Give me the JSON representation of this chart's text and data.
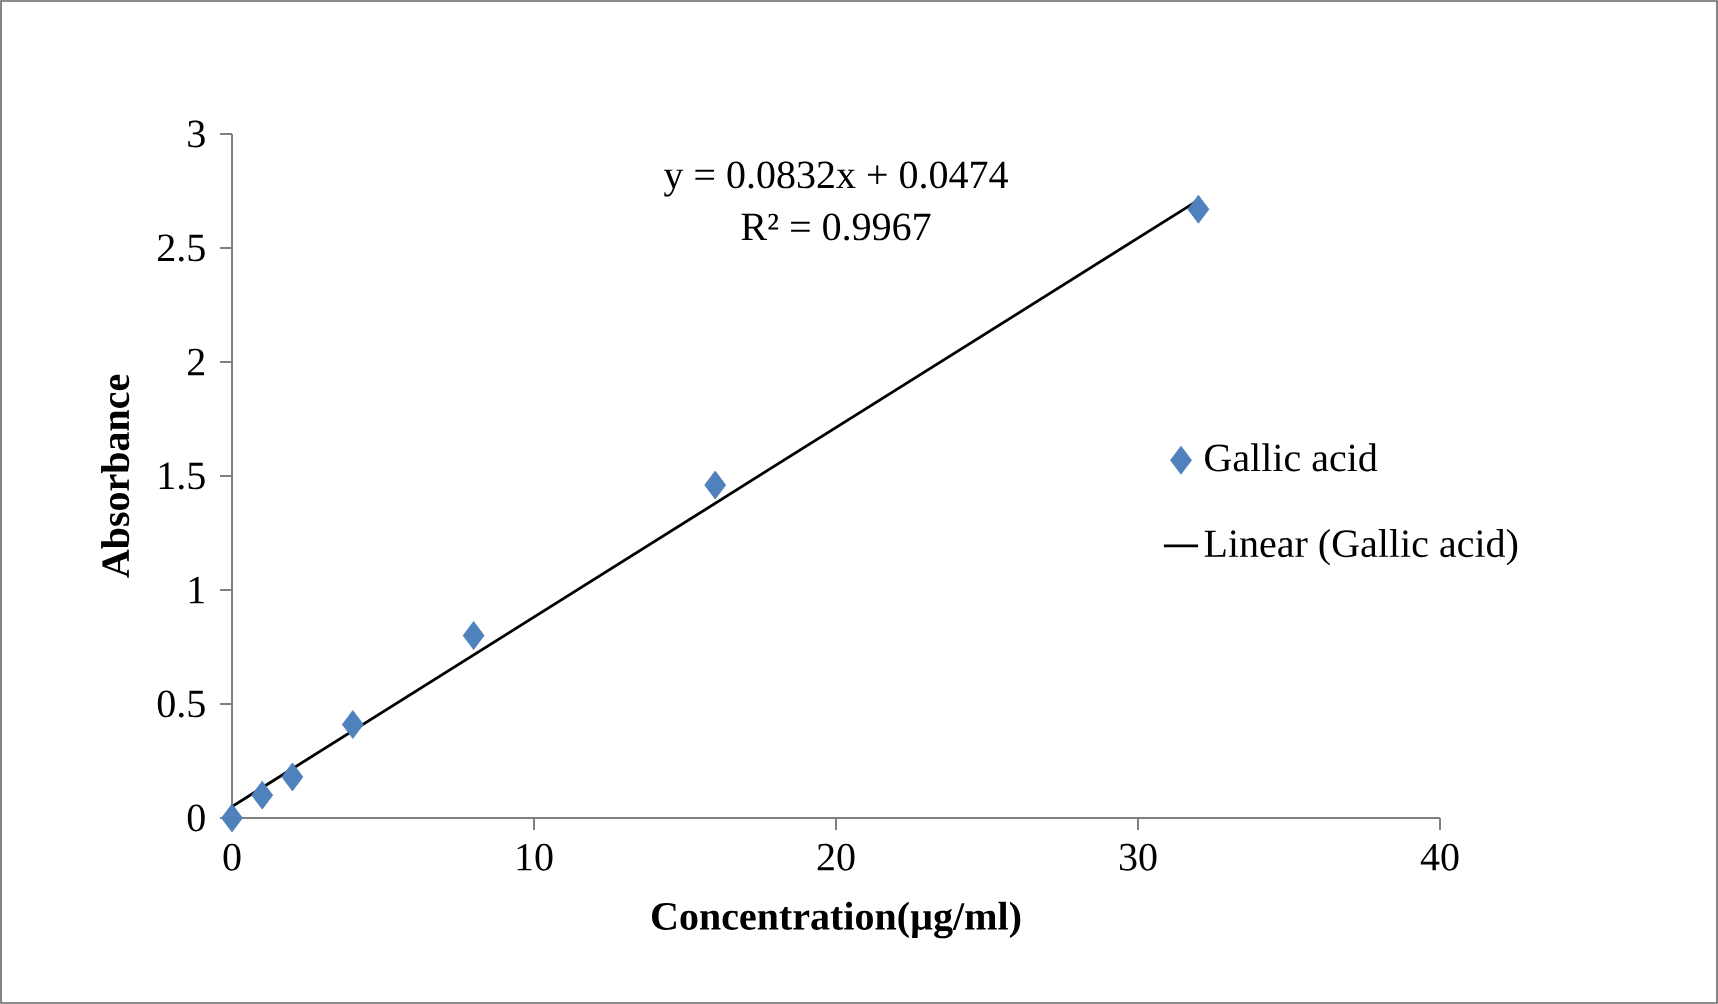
{
  "chart_data": {
    "type": "scatter",
    "xlabel": "Concentration(µg/ml)",
    "ylabel": "Absorbance",
    "annotations": [
      "y = 0.0832x + 0.0474",
      "R² = 0.9967"
    ],
    "series": [
      {
        "name": "Gallic acid",
        "color": "#4f81bd",
        "marker": "diamond",
        "x": [
          0,
          1,
          2,
          4,
          8,
          16,
          32
        ],
        "values": [
          0,
          0.1,
          0.18,
          0.41,
          0.8,
          1.46,
          2.67
        ]
      },
      {
        "name": "Linear (Gallic acid)",
        "type": "line",
        "color": "#000000",
        "line_style": "solid",
        "x": [
          0,
          32
        ],
        "values": [
          0.05,
          2.71
        ]
      }
    ],
    "xlim": [
      0,
      40
    ],
    "ylim": [
      0,
      3
    ],
    "xticks": [
      0,
      10,
      20,
      30,
      40
    ],
    "yticks": [
      0,
      0.5,
      1,
      1.5,
      2,
      2.5,
      3
    ],
    "grid": false,
    "legend": "right"
  }
}
